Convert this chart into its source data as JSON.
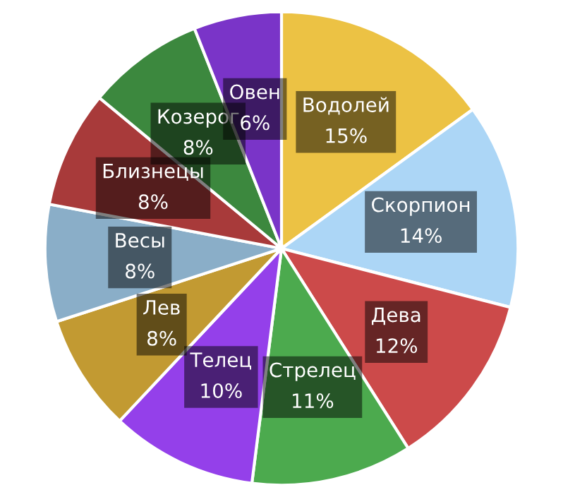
{
  "chart_data": {
    "type": "pie",
    "categories": [
      "Водолей",
      "Скорпион",
      "Дева",
      "Стрелец",
      "Телец",
      "Лев",
      "Весы",
      "Близнецы",
      "Козерог",
      "Овен"
    ],
    "values": [
      15,
      14,
      12,
      11,
      10,
      8,
      8,
      8,
      8,
      6
    ],
    "value_labels": [
      "15%",
      "14%",
      "12%",
      "11%",
      "10%",
      "8%",
      "8%",
      "8%",
      "8%",
      "6%"
    ],
    "colors": [
      "#ecc244",
      "#acd6f6",
      "#cc4a4a",
      "#4caa4e",
      "#9440ea",
      "#c29a32",
      "#8aaec8",
      "#a83a3a",
      "#3c883e",
      "#7a34c8"
    ],
    "legend": false
  }
}
